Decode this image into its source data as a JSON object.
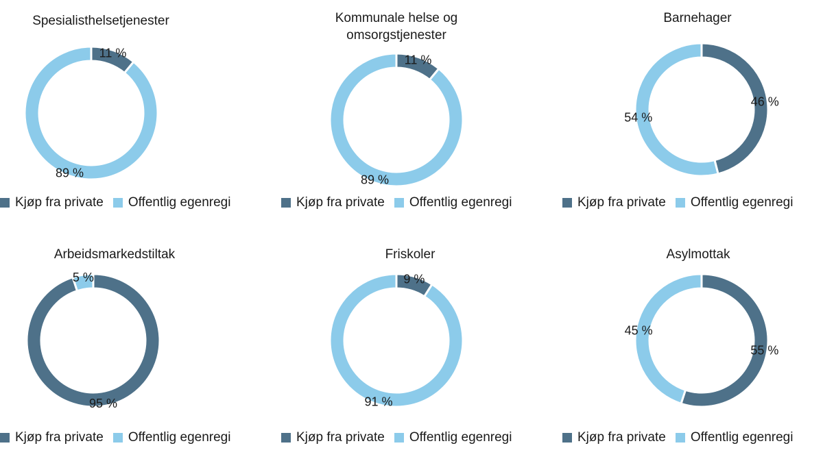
{
  "legend": {
    "private_label": "Kjøp fra private",
    "public_label": "Offentlig egenregi"
  },
  "colors": {
    "private": "#4e7189",
    "public": "#8ccbea"
  },
  "chart_data": [
    {
      "type": "pie",
      "title_lines": [
        "Spesialisthelsetjenester"
      ],
      "series": [
        {
          "name": "Kjøp fra private",
          "value": 11,
          "label": "11 %"
        },
        {
          "name": "Offentlig egenregi",
          "value": 89,
          "label": "89 %"
        }
      ]
    },
    {
      "type": "pie",
      "title_lines": [
        "Kommunale helse og",
        "omsorgstjenester"
      ],
      "series": [
        {
          "name": "Kjøp fra private",
          "value": 11,
          "label": "11 %"
        },
        {
          "name": "Offentlig egenregi",
          "value": 89,
          "label": "89 %"
        }
      ]
    },
    {
      "type": "pie",
      "title_lines": [
        "Barnehager"
      ],
      "series": [
        {
          "name": "Kjøp fra private",
          "value": 46,
          "label": "46 %"
        },
        {
          "name": "Offentlig egenregi",
          "value": 54,
          "label": "54 %"
        }
      ]
    },
    {
      "type": "pie",
      "title_lines": [
        "Arbeidsmarkedstiltak"
      ],
      "series": [
        {
          "name": "Kjøp fra private",
          "value": 95,
          "label": "95 %"
        },
        {
          "name": "Offentlig egenregi",
          "value": 5,
          "label": "5 %"
        }
      ]
    },
    {
      "type": "pie",
      "title_lines": [
        "Friskoler"
      ],
      "series": [
        {
          "name": "Kjøp fra private",
          "value": 9,
          "label": "9 %"
        },
        {
          "name": "Offentlig egenregi",
          "value": 91,
          "label": "91 %"
        }
      ]
    },
    {
      "type": "pie",
      "title_lines": [
        "Asylmottak"
      ],
      "series": [
        {
          "name": "Kjøp fra private",
          "value": 55,
          "label": "55 %"
        },
        {
          "name": "Offentlig egenregi",
          "value": 45,
          "label": "45 %"
        }
      ]
    }
  ]
}
